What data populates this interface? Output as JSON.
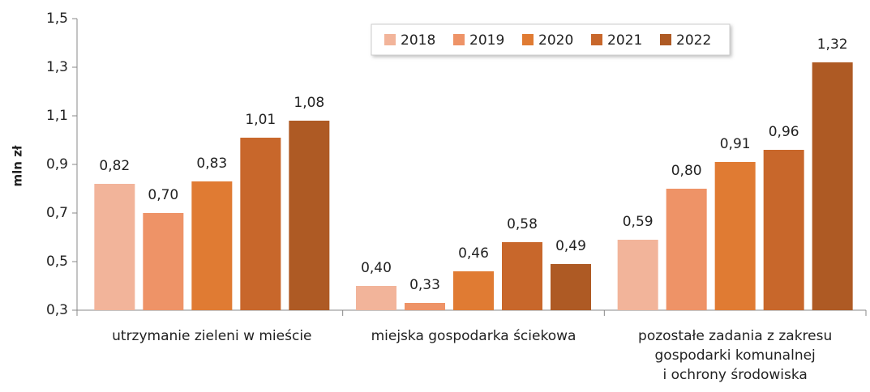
{
  "chart_data": {
    "type": "bar",
    "y_label": "mln zł",
    "categories": [
      "utrzymanie zieleni w mieście",
      "miejska gospodarka ściekowa",
      "pozostałe zadania z zakresu\ngospodarki komunalnej\ni ochrony środowiska"
    ],
    "series": [
      {
        "name": "2018",
        "color": "#f2b49a",
        "values": [
          0.82,
          0.4,
          0.59
        ],
        "value_labels": [
          "0,82",
          "0,40",
          "0,59"
        ]
      },
      {
        "name": "2019",
        "color": "#ee9367",
        "values": [
          0.7,
          0.33,
          0.8
        ],
        "value_labels": [
          "0,70",
          "0,33",
          "0,80"
        ]
      },
      {
        "name": "2020",
        "color": "#e07b33",
        "values": [
          0.83,
          0.46,
          0.91
        ],
        "value_labels": [
          "0,83",
          "0,46",
          "0,91"
        ]
      },
      {
        "name": "2021",
        "color": "#c8672b",
        "values": [
          1.01,
          0.58,
          0.96
        ],
        "value_labels": [
          "1,01",
          "0,58",
          "0,96"
        ]
      },
      {
        "name": "2022",
        "color": "#ae5a24",
        "values": [
          1.08,
          0.49,
          1.32
        ],
        "value_labels": [
          "1,08",
          "0,49",
          "1,32"
        ]
      }
    ],
    "ylim": [
      0.3,
      1.5
    ],
    "yticks": [
      {
        "value": 0.3,
        "label": "0,3"
      },
      {
        "value": 0.5,
        "label": "0,5"
      },
      {
        "value": 0.7,
        "label": "0,7"
      },
      {
        "value": 0.9,
        "label": "0,9"
      },
      {
        "value": 1.1,
        "label": "1,1"
      },
      {
        "value": 1.3,
        "label": "1,3"
      },
      {
        "value": 1.5,
        "label": "1,5"
      }
    ],
    "legend": "top"
  }
}
